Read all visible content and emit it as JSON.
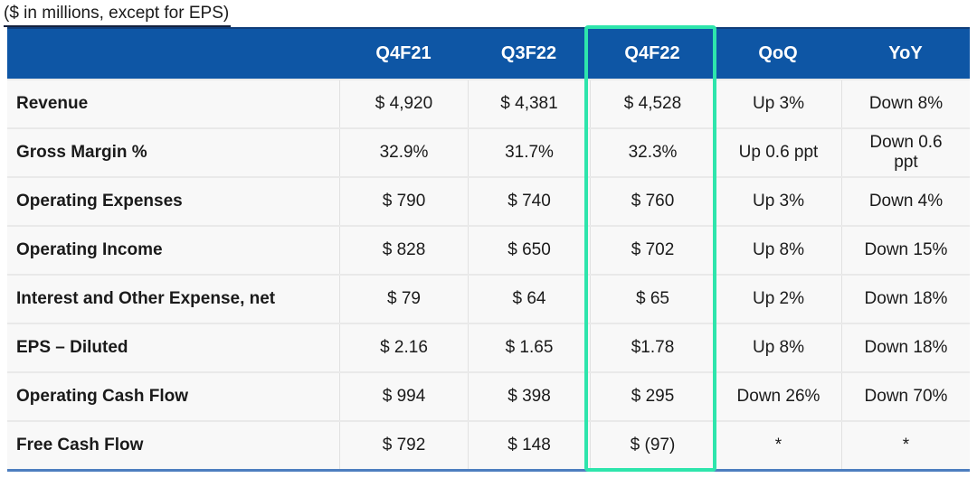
{
  "caption": "($ in millions, except for EPS)",
  "colors": {
    "header_bg": "#0e56a5",
    "highlight_border": "#2ee5ac",
    "bottom_rule": "#4d7ebf",
    "top_rule": "#0f3d7a",
    "row_bg": "#f8f8f8"
  },
  "chart_data": {
    "type": "table",
    "title": "($ in millions, except for EPS)",
    "columns": [
      "",
      "Q4F21",
      "Q3F22",
      "Q4F22",
      "QoQ",
      "YoY"
    ],
    "highlighted_column": "Q4F22",
    "rows": [
      [
        "Revenue",
        "$ 4,920",
        "$ 4,381",
        "$ 4,528",
        "Up 3%",
        "Down 8%"
      ],
      [
        "Gross Margin %",
        "32.9%",
        "31.7%",
        "32.3%",
        "Up 0.6 ppt",
        "Down 0.6 ppt"
      ],
      [
        "Operating Expenses",
        "$ 790",
        "$ 740",
        "$ 760",
        "Up 3%",
        "Down 4%"
      ],
      [
        "Operating Income",
        "$ 828",
        "$ 650",
        "$ 702",
        "Up 8%",
        "Down 15%"
      ],
      [
        "Interest and Other Expense, net",
        "$ 79",
        "$ 64",
        "$ 65",
        "Up 2%",
        "Down 18%"
      ],
      [
        "EPS – Diluted",
        "$ 2.16",
        "$ 1.65",
        "$1.78",
        "Up 8%",
        "Down 18%"
      ],
      [
        "Operating Cash Flow",
        "$ 994",
        "$ 398",
        "$ 295",
        "Down 26%",
        "Down 70%"
      ],
      [
        "Free Cash Flow",
        "$ 792",
        "$ 148",
        "$ (97)",
        "*",
        "*"
      ]
    ],
    "layout": {
      "header_text_color": "#ffffff",
      "grid": "light vertical separators between columns, light horizontal separators between rows",
      "highlight": "teal box framing Q4F22 column from header to bottom rule"
    }
  }
}
